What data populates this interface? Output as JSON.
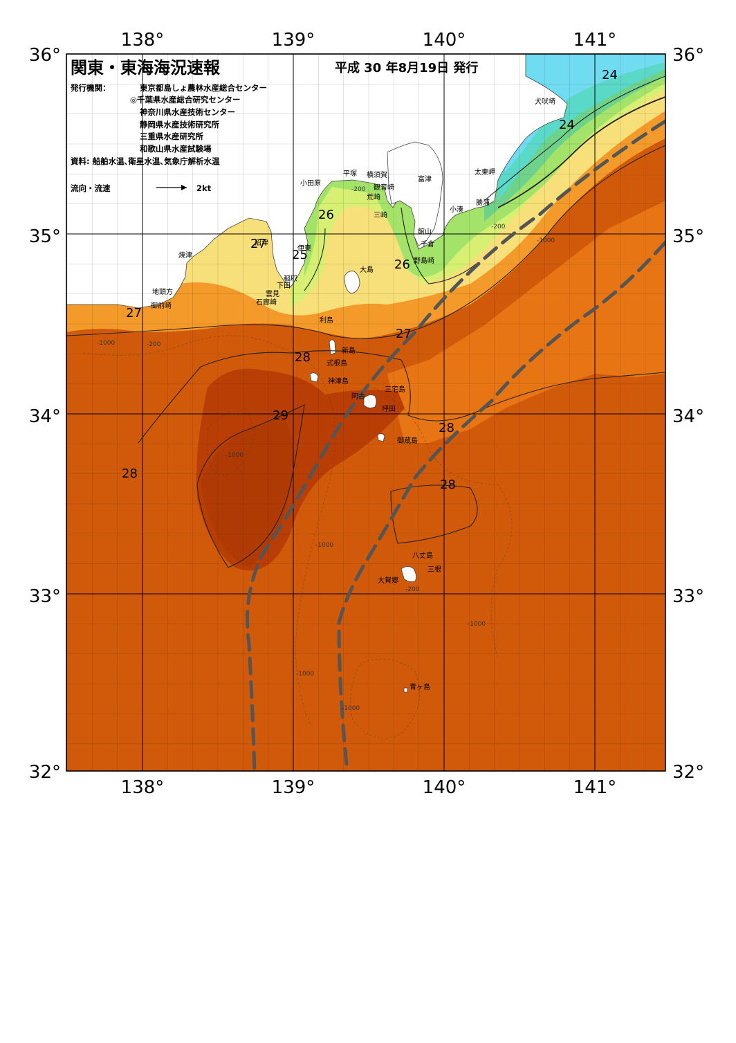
{
  "header": {
    "title": "関東・東海海況速報",
    "date": "平成 30 年8月19日 発行",
    "issuer_label": "発行機関：",
    "issuers": [
      "東京都島しょ農林水産総合センター",
      "◎千葉県水産総合研究センター",
      "神奈川県水産技術センター",
      "静岡県水産技術研究所",
      "三重県水産研究所",
      "和歌山県水産試験場"
    ],
    "source": "資料: 船舶水温､衛星水温､気象庁解析水温",
    "legend_label": "流向・流速",
    "legend_scale": "2kt"
  },
  "axes": {
    "lon_labels": [
      "138°",
      "139°",
      "140°",
      "141°"
    ],
    "lat_labels": [
      "36°",
      "35°",
      "34°",
      "33°",
      "32°"
    ]
  },
  "places": [
    {
      "name": "犬吠埼"
    },
    {
      "name": "太東岬"
    },
    {
      "name": "勝浦"
    },
    {
      "name": "小湊"
    },
    {
      "name": "富津"
    },
    {
      "name": "横須賀"
    },
    {
      "name": "観音崎"
    },
    {
      "name": "荒崎"
    },
    {
      "name": "三崎"
    },
    {
      "name": "館山"
    },
    {
      "name": "千倉"
    },
    {
      "name": "野島崎"
    },
    {
      "name": "小田原"
    },
    {
      "name": "平塚"
    },
    {
      "name": "伊東"
    },
    {
      "name": "稲取"
    },
    {
      "name": "下田"
    },
    {
      "name": "雲見"
    },
    {
      "name": "石廊崎"
    },
    {
      "name": "沼津"
    },
    {
      "name": "焼津"
    },
    {
      "name": "地頭方"
    },
    {
      "name": "御前崎"
    },
    {
      "name": "大島"
    },
    {
      "name": "利島"
    },
    {
      "name": "新島"
    },
    {
      "name": "式根島"
    },
    {
      "name": "神津島"
    },
    {
      "name": "三宅島"
    },
    {
      "name": "阿古"
    },
    {
      "name": "坪田"
    },
    {
      "name": "御蔵島"
    },
    {
      "name": "八丈島"
    },
    {
      "name": "三根"
    },
    {
      "name": "大賀郷"
    },
    {
      "name": "青ヶ島"
    }
  ],
  "isotherm_labels": [
    "24",
    "24",
    "26",
    "25",
    "26",
    "27",
    "27",
    "27",
    "28",
    "29",
    "28",
    "28",
    "28"
  ],
  "depth_labels": [
    "-200",
    "-1000"
  ],
  "colors": {
    "t29": "#b83e06",
    "t28": "#d15a0a",
    "t27": "#e87514",
    "t26": "#f39a2a",
    "t25": "#f7e07a",
    "t24": "#d7ef72",
    "t23": "#a3e36a",
    "t22": "#6fd28a",
    "t21": "#5ad8c8",
    "t20": "#6fdcf2",
    "land": "#ffffff",
    "current": "#555555"
  }
}
